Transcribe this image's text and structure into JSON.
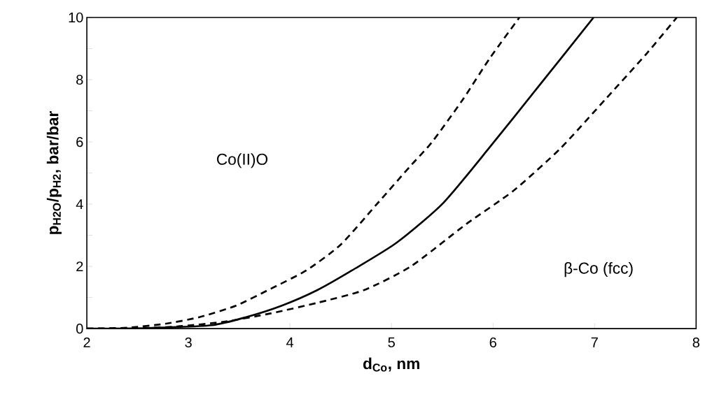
{
  "chart_data": {
    "type": "line",
    "xlabel": "d$_{Co}$, nm",
    "ylabel": "p$_{H2O}$/p$_{H2}$, bar/bar",
    "annotations": [
      "Co(II)O",
      "β-Co (fcc)"
    ],
    "xlim": [
      2,
      8
    ],
    "ylim": [
      0,
      10
    ],
    "xticks": [
      2,
      3,
      4,
      5,
      6,
      7,
      8
    ],
    "yticks": [
      0,
      {
        "value": 1,
        "label": null
      },
      2,
      {
        "value": 3,
        "label": null
      },
      4,
      {
        "value": 5,
        "label": null
      },
      6,
      {
        "value": 7,
        "label": null
      },
      8,
      {
        "value": 9,
        "label": null
      },
      10
    ],
    "grid": false,
    "marker": "none",
    "series": [
      {
        "color": "#000000",
        "line_style": "dashed",
        "x": [
          2.0,
          2.4,
          2.78,
          3.12,
          3.47,
          3.81,
          4.16,
          4.5,
          4.85,
          5.19,
          5.4,
          5.7,
          5.97,
          6.26
        ],
        "values": [
          0.0,
          0.03,
          0.16,
          0.38,
          0.74,
          1.28,
          1.87,
          2.7,
          3.98,
          5.24,
          6.0,
          7.35,
          8.7,
          10.0
        ]
      },
      {
        "color": "#000000",
        "line_style": "solid",
        "x": [
          2.0,
          2.6,
          3.23,
          3.58,
          3.92,
          4.27,
          4.61,
          5.05,
          5.51,
          5.97,
          6.43,
          6.99
        ],
        "values": [
          0.0,
          0.02,
          0.11,
          0.38,
          0.74,
          1.24,
          1.87,
          2.76,
          4.04,
          5.84,
          7.71,
          10.0
        ]
      },
      {
        "color": "#000000",
        "line_style": "dashed",
        "x": [
          2.0,
          2.5,
          2.89,
          3.35,
          3.81,
          4.27,
          4.73,
          5.19,
          5.74,
          6.2,
          6.66,
          7.12,
          7.51,
          7.81
        ],
        "values": [
          0.0,
          0.01,
          0.07,
          0.22,
          0.49,
          0.83,
          1.24,
          2.0,
          3.37,
          4.43,
          5.78,
          7.42,
          8.83,
          10.0
        ]
      }
    ]
  }
}
